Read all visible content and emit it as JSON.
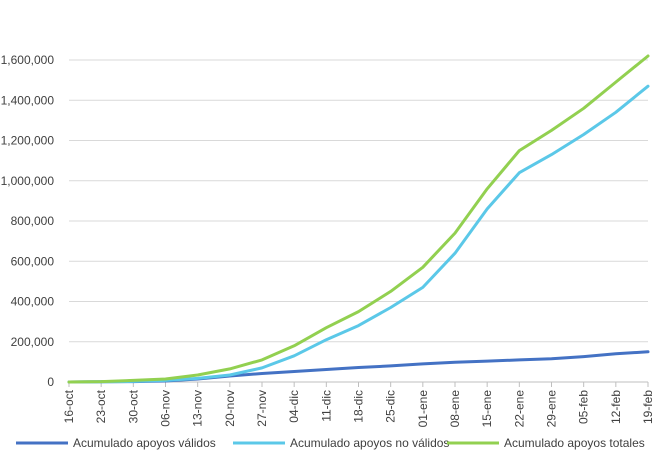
{
  "chart_data": {
    "type": "line",
    "title": "",
    "xlabel": "",
    "ylabel": "",
    "ylim": [
      0,
      1600000
    ],
    "yticks": [
      0,
      200000,
      400000,
      600000,
      800000,
      1000000,
      1200000,
      1400000,
      1600000
    ],
    "ytick_labels": [
      "0",
      "200,000",
      "400,000",
      "600,000",
      "800,000",
      "1,000,000",
      "1,200,000",
      "1,400,000",
      "1,600,000"
    ],
    "categories": [
      "16-oct",
      "23-oct",
      "30-oct",
      "06-nov",
      "13-nov",
      "20-nov",
      "27-nov",
      "04-dic",
      "11-dic",
      "18-dic",
      "25-dic",
      "01-ene",
      "08-ene",
      "15-ene",
      "22-ene",
      "29-ene",
      "05-feb",
      "12-feb",
      "19-feb"
    ],
    "grid": "horizontal",
    "legend_position": "bottom",
    "series": [
      {
        "name": "Acumulado apoyos válidos",
        "color": "#4472C4",
        "values": [
          0,
          1000,
          2000,
          5000,
          15000,
          30000,
          42000,
          52000,
          62000,
          72000,
          80000,
          90000,
          98000,
          104000,
          110000,
          116000,
          126000,
          140000,
          150000
        ]
      },
      {
        "name": "Acumulado apoyos no válidos",
        "color": "#5BC8E8",
        "values": [
          0,
          1000,
          3000,
          8000,
          18000,
          35000,
          70000,
          130000,
          210000,
          280000,
          370000,
          470000,
          640000,
          860000,
          1040000,
          1130000,
          1230000,
          1340000,
          1470000
        ]
      },
      {
        "name": "Acumulado apoyos totales",
        "color": "#92D050",
        "values": [
          0,
          2000,
          8000,
          15000,
          35000,
          65000,
          110000,
          180000,
          270000,
          350000,
          450000,
          570000,
          740000,
          960000,
          1150000,
          1250000,
          1360000,
          1490000,
          1620000
        ]
      }
    ]
  }
}
